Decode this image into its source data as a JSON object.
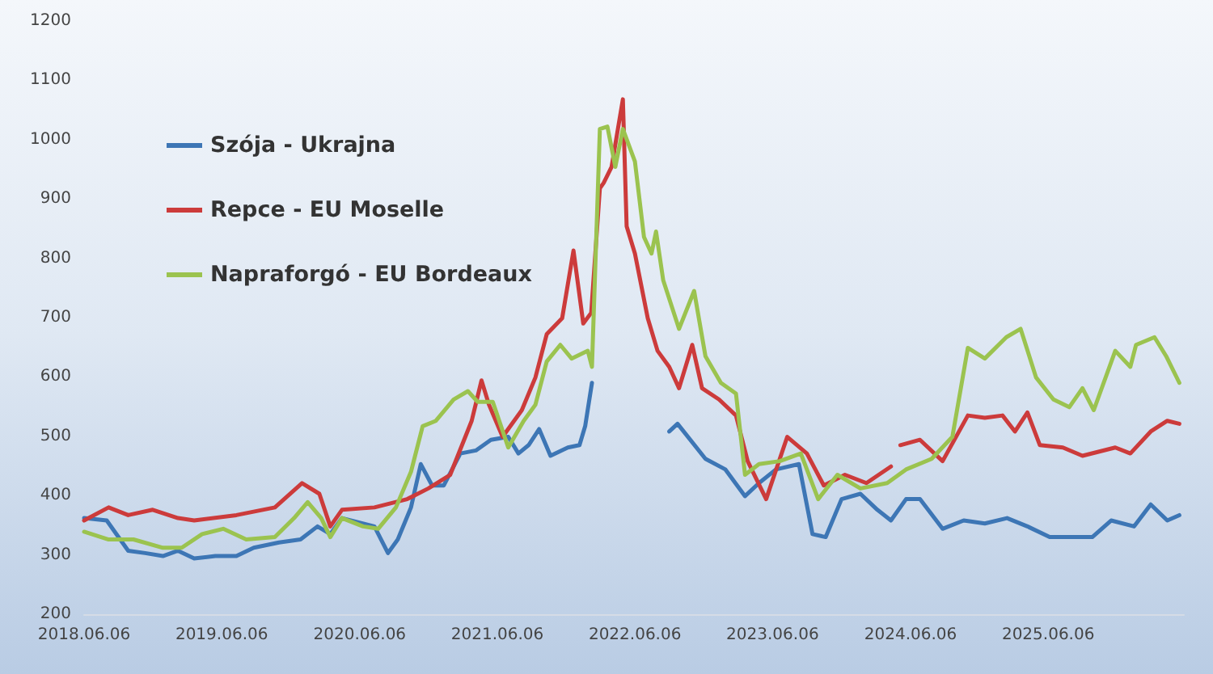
{
  "chart_data": {
    "type": "line",
    "legend": "top left",
    "grid": false,
    "marker": "none",
    "line_style": "solid",
    "xlim": [
      "2018-06-06",
      "2026-06-01"
    ],
    "xticks": [
      {
        "value": "2018-06-06",
        "label": "2018.06.06"
      },
      {
        "value": "2019-06-06",
        "label": "2019.06.06"
      },
      {
        "value": "2020-06-06",
        "label": "2020.06.06"
      },
      {
        "value": "2021-06-06",
        "label": "2021.06.06"
      },
      {
        "value": "2022-06-06",
        "label": "2022.06.06"
      },
      {
        "value": "2023-06-06",
        "label": "2023.06.06"
      },
      {
        "value": "2024-06-06",
        "label": "2024.06.06"
      },
      {
        "value": "2025-06-06",
        "label": "2025.06.06"
      }
    ],
    "ylim": [
      200,
      1200
    ],
    "yticks": [
      200,
      300,
      400,
      500,
      600,
      700,
      800,
      900,
      1000,
      1100,
      1200
    ],
    "series": [
      {
        "name": "Szója - Ukrajna",
        "color": "#3d76b5",
        "x": [
          "2018-06-06",
          "2018-08-05",
          "2018-10-01",
          "2018-11-15",
          "2019-01-01",
          "2019-02-10",
          "2019-03-25",
          "2019-05-20",
          "2019-07-15",
          "2019-08-30",
          "2019-11-05",
          "2020-01-01",
          "2020-02-15",
          "2020-03-20",
          "2020-04-20",
          "2020-07-15",
          "2020-08-20",
          "2020-09-15",
          "2020-10-20",
          "2020-11-15",
          "2020-12-15",
          "2021-01-15",
          "2021-02-28",
          "2021-04-10",
          "2021-05-20",
          "2021-07-05",
          "2021-08-01",
          "2021-08-28",
          "2021-09-25",
          "2021-10-25",
          "2021-12-10",
          "2022-01-10",
          "2022-01-25",
          "2022-02-12",
          "2022-05-01",
          "2022-09-05",
          "2022-09-27",
          "2022-12-10",
          "2023-02-01",
          "2023-03-25",
          "2023-05-01",
          "2023-06-15",
          "2023-08-15",
          "2023-09-20",
          "2023-10-25",
          "2023-12-06",
          "2024-01-25",
          "2024-03-10",
          "2024-04-15",
          "2024-05-25",
          "2024-07-01",
          "2024-08-30",
          "2024-10-25",
          "2024-12-20",
          "2025-02-17",
          "2025-04-12",
          "2025-06-10",
          "2025-08-05",
          "2025-10-01",
          "2025-11-20",
          "2026-01-20",
          "2026-03-05",
          "2026-04-18",
          "2026-05-20"
        ],
        "values": [
          362,
          358,
          307,
          303,
          298,
          307,
          294,
          298,
          298,
          312,
          321,
          326,
          348,
          335,
          362,
          348,
          303,
          326,
          380,
          453,
          417,
          417,
          471,
          476,
          494,
          499,
          471,
          485,
          512,
          467,
          481,
          485,
          517,
          590,
          null,
          508,
          521,
          462,
          444,
          399,
          421,
          444,
          453,
          335,
          330,
          394,
          403,
          376,
          358,
          394,
          394,
          344,
          358,
          353,
          362,
          348,
          330,
          330,
          330,
          358,
          348,
          385,
          358,
          367
        ]
      },
      {
        "name": "Repce - EU Moselle",
        "color": "#cc3b3b",
        "x": [
          "2018-06-06",
          "2018-08-10",
          "2018-10-01",
          "2018-12-05",
          "2019-02-10",
          "2019-03-25",
          "2019-07-15",
          "2019-10-25",
          "2020-01-05",
          "2020-02-20",
          "2020-03-20",
          "2020-04-20",
          "2020-07-15",
          "2020-10-10",
          "2020-12-05",
          "2021-02-01",
          "2021-03-30",
          "2021-04-25",
          "2021-05-15",
          "2021-06-20",
          "2021-08-10",
          "2021-09-15",
          "2021-10-15",
          "2021-11-25",
          "2021-12-25",
          "2022-01-20",
          "2022-02-10",
          "2022-03-05",
          "2022-03-15",
          "2022-04-05",
          "2022-05-05",
          "2022-05-15",
          "2022-06-06",
          "2022-07-10",
          "2022-08-05",
          "2022-09-05",
          "2022-10-01",
          "2022-11-05",
          "2022-12-01",
          "2023-01-15",
          "2023-03-01",
          "2023-04-01",
          "2023-05-20",
          "2023-07-15",
          "2023-09-05",
          "2023-10-20",
          "2023-12-15",
          "2024-02-10",
          "2024-04-15",
          "2024-04-25",
          "2024-05-10",
          "2024-07-01",
          "2024-08-30",
          "2024-11-05",
          "2024-12-20",
          "2025-02-05",
          "2025-03-10",
          "2025-04-12",
          "2025-05-15",
          "2025-07-15",
          "2025-09-05",
          "2025-12-01",
          "2026-01-10",
          "2026-03-05",
          "2026-04-18",
          "2026-05-20"
        ],
        "values": [
          358,
          380,
          367,
          376,
          362,
          358,
          367,
          380,
          421,
          403,
          348,
          376,
          380,
          394,
          412,
          435,
          526,
          594,
          553,
          499,
          544,
          599,
          672,
          699,
          813,
          690,
          708,
          918,
          927,
          954,
          1068,
          854,
          808,
          699,
          644,
          617,
          581,
          654,
          581,
          562,
          535,
          458,
          394,
          499,
          471,
          417,
          435,
          421,
          449,
          null,
          485,
          494,
          458,
          535,
          531,
          535,
          508,
          540,
          485,
          481,
          467,
          481,
          471,
          508,
          526,
          521
        ]
      },
      {
        "name": "Napraforgó - EU Bordeaux",
        "color": "#9bc34f",
        "x": [
          "2018-06-06",
          "2018-08-10",
          "2018-10-15",
          "2019-01-01",
          "2019-02-20",
          "2019-04-15",
          "2019-06-10",
          "2019-08-10",
          "2019-10-25",
          "2019-12-15",
          "2020-01-20",
          "2020-02-25",
          "2020-03-20",
          "2020-04-20",
          "2020-06-15",
          "2020-07-25",
          "2020-09-10",
          "2020-10-20",
          "2020-11-20",
          "2020-12-25",
          "2021-02-10",
          "2021-03-20",
          "2021-04-15",
          "2021-05-25",
          "2021-07-05",
          "2021-08-15",
          "2021-09-15",
          "2021-10-15",
          "2021-11-20",
          "2021-12-20",
          "2022-02-01",
          "2022-02-12",
          "2022-03-05",
          "2022-03-25",
          "2022-04-15",
          "2022-05-05",
          "2022-06-06",
          "2022-06-30",
          "2022-07-20",
          "2022-08-01",
          "2022-08-20",
          "2022-10-01",
          "2022-11-10",
          "2022-12-10",
          "2023-01-20",
          "2023-03-01",
          "2023-03-25",
          "2023-05-01",
          "2023-06-25",
          "2023-08-20",
          "2023-10-05",
          "2023-11-25",
          "2024-01-25",
          "2024-04-05",
          "2024-05-25",
          "2024-08-01",
          "2024-09-25",
          "2024-11-05",
          "2024-12-20",
          "2025-02-15",
          "2025-03-25",
          "2025-05-05",
          "2025-06-20",
          "2025-08-01",
          "2025-09-05",
          "2025-10-05",
          "2025-12-01",
          "2026-01-10",
          "2026-01-25",
          "2026-03-15",
          "2026-04-15",
          "2026-05-20"
        ],
        "values": [
          339,
          326,
          326,
          312,
          312,
          335,
          344,
          326,
          330,
          362,
          389,
          362,
          330,
          362,
          348,
          344,
          380,
          440,
          517,
          526,
          562,
          576,
          558,
          558,
          481,
          526,
          553,
          626,
          654,
          631,
          644,
          617,
          1018,
          1022,
          954,
          1018,
          963,
          836,
          808,
          845,
          763,
          681,
          745,
          635,
          590,
          572,
          435,
          453,
          458,
          471,
          394,
          435,
          412,
          421,
          444,
          462,
          499,
          649,
          631,
          667,
          681,
          599,
          562,
          549,
          581,
          544,
          644,
          617,
          654,
          667,
          635,
          590
        ]
      }
    ]
  }
}
